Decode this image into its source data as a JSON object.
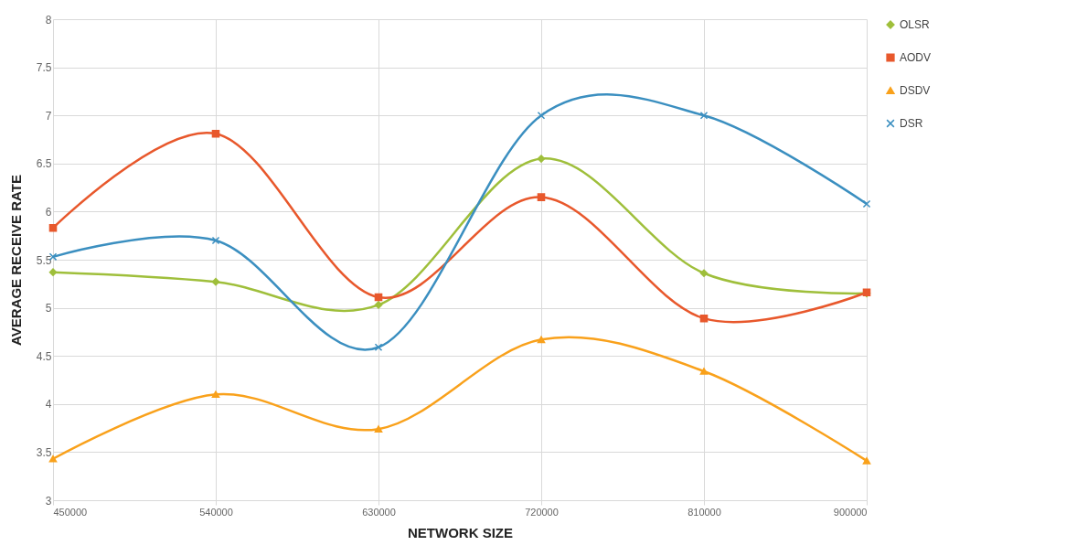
{
  "chart_data": {
    "type": "line",
    "xlabel": "NETWORK SIZE",
    "ylabel": "AVERAGE RECEIVE RATE",
    "x": [
      450000,
      540000,
      630000,
      720000,
      810000,
      900000
    ],
    "series": [
      {
        "name": "OLSR",
        "color": "#9fbf3b",
        "marker": "diamond",
        "values": [
          5.37,
          5.27,
          5.03,
          6.55,
          5.36,
          5.15
        ]
      },
      {
        "name": "AODV",
        "color": "#e8582c",
        "marker": "square",
        "values": [
          5.83,
          6.81,
          5.11,
          6.15,
          4.89,
          5.16
        ]
      },
      {
        "name": "DSDV",
        "color": "#f9a11b",
        "marker": "triangle",
        "values": [
          3.43,
          4.1,
          3.74,
          4.67,
          4.34,
          3.41
        ]
      },
      {
        "name": "DSR",
        "color": "#3b8fc0",
        "marker": "cross",
        "values": [
          5.53,
          5.7,
          4.59,
          7.0,
          7.0,
          6.08
        ]
      }
    ],
    "xlim": [
      450000,
      900000
    ],
    "xticks": [
      450000,
      540000,
      630000,
      720000,
      810000,
      900000
    ],
    "ylim": [
      3,
      8
    ],
    "yticks": [
      3,
      3.5,
      4,
      4.5,
      5,
      5.5,
      6,
      6.5,
      7,
      7.5,
      8
    ],
    "grid": true,
    "legend": "right",
    "line_style": "solid"
  }
}
